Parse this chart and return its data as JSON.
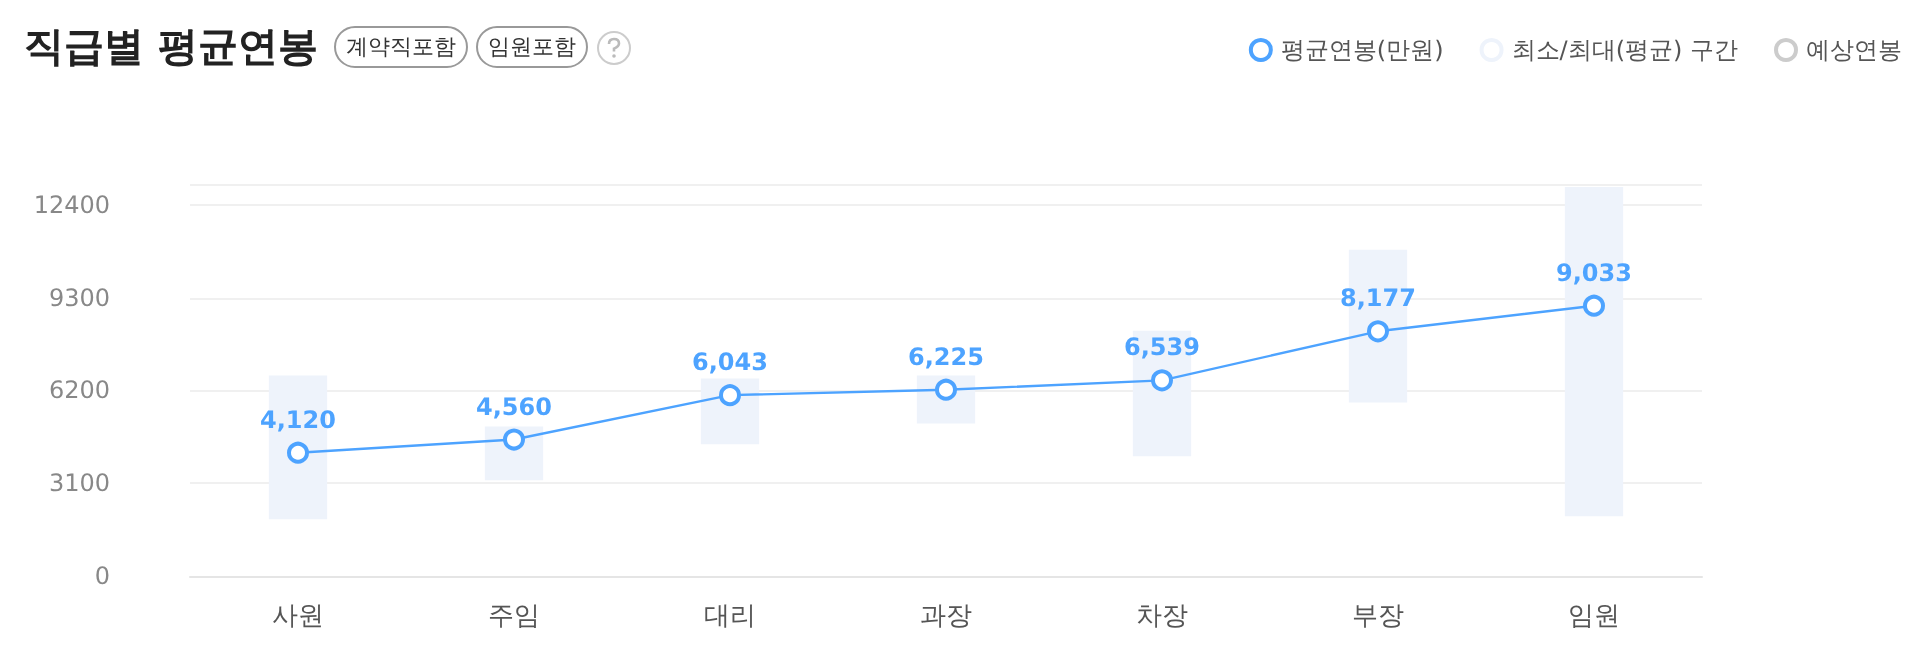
{
  "chart_data": {
    "type": "line",
    "title": "직급별 평균연봉",
    "annotations": [
      "계약직포함",
      "임원포함"
    ],
    "categories": [
      "사원",
      "주임",
      "대리",
      "과장",
      "차장",
      "부장",
      "임원"
    ],
    "series": [
      {
        "name": "평균연봉(만원)",
        "color": "#4da3ff",
        "values": [
          4120,
          4560,
          6043,
          6225,
          6539,
          8177,
          9033
        ],
        "value_labels": [
          "4,120",
          "4,560",
          "6,043",
          "6,225",
          "6,539",
          "8,177",
          "9,033"
        ]
      },
      {
        "name": "최소/최대(평균) 구간",
        "type": "bar",
        "color": "#eef3fb",
        "base": [
          1900,
          3200,
          4400,
          5100,
          4000,
          5800,
          2000
        ],
        "values": [
          4800,
          1800,
          2200,
          1600,
          4200,
          5100,
          11000
        ]
      },
      {
        "name": "예상연봉",
        "color": "#cccccc",
        "values": [
          null,
          null,
          null,
          null,
          null,
          null,
          null
        ]
      }
    ],
    "ylim": [
      0,
      13100
    ],
    "yticks": [
      0,
      3100,
      6200,
      9300,
      12400
    ],
    "grid": "y",
    "legend": "top right",
    "marker": "circle"
  }
}
